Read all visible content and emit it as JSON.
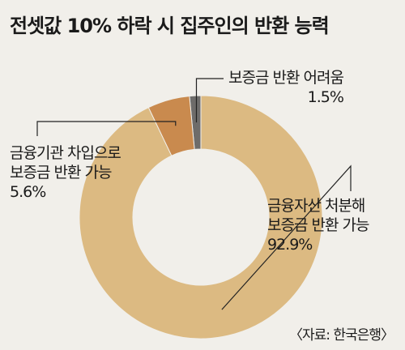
{
  "title": "전셋값 10% 하락 시 집주인의 반환 능력",
  "source": "〈자료: 한국은행〉",
  "chart_data": {
    "type": "pie",
    "donut": true,
    "slices": [
      {
        "label_lines": [
          "보증금 반환 어려움"
        ],
        "value": 1.5,
        "value_text": "1.5%",
        "color": "#6e6c6a"
      },
      {
        "label_lines": [
          "금융기관 차입으로",
          "보증금 반환 가능"
        ],
        "value": 5.6,
        "value_text": "5.6%",
        "color": "#c98a4e"
      },
      {
        "label_lines": [
          "금융자산 처분해",
          "보증금 반환 가능"
        ],
        "value": 92.9,
        "value_text": "92.9%",
        "color": "#dcba82"
      }
    ]
  }
}
